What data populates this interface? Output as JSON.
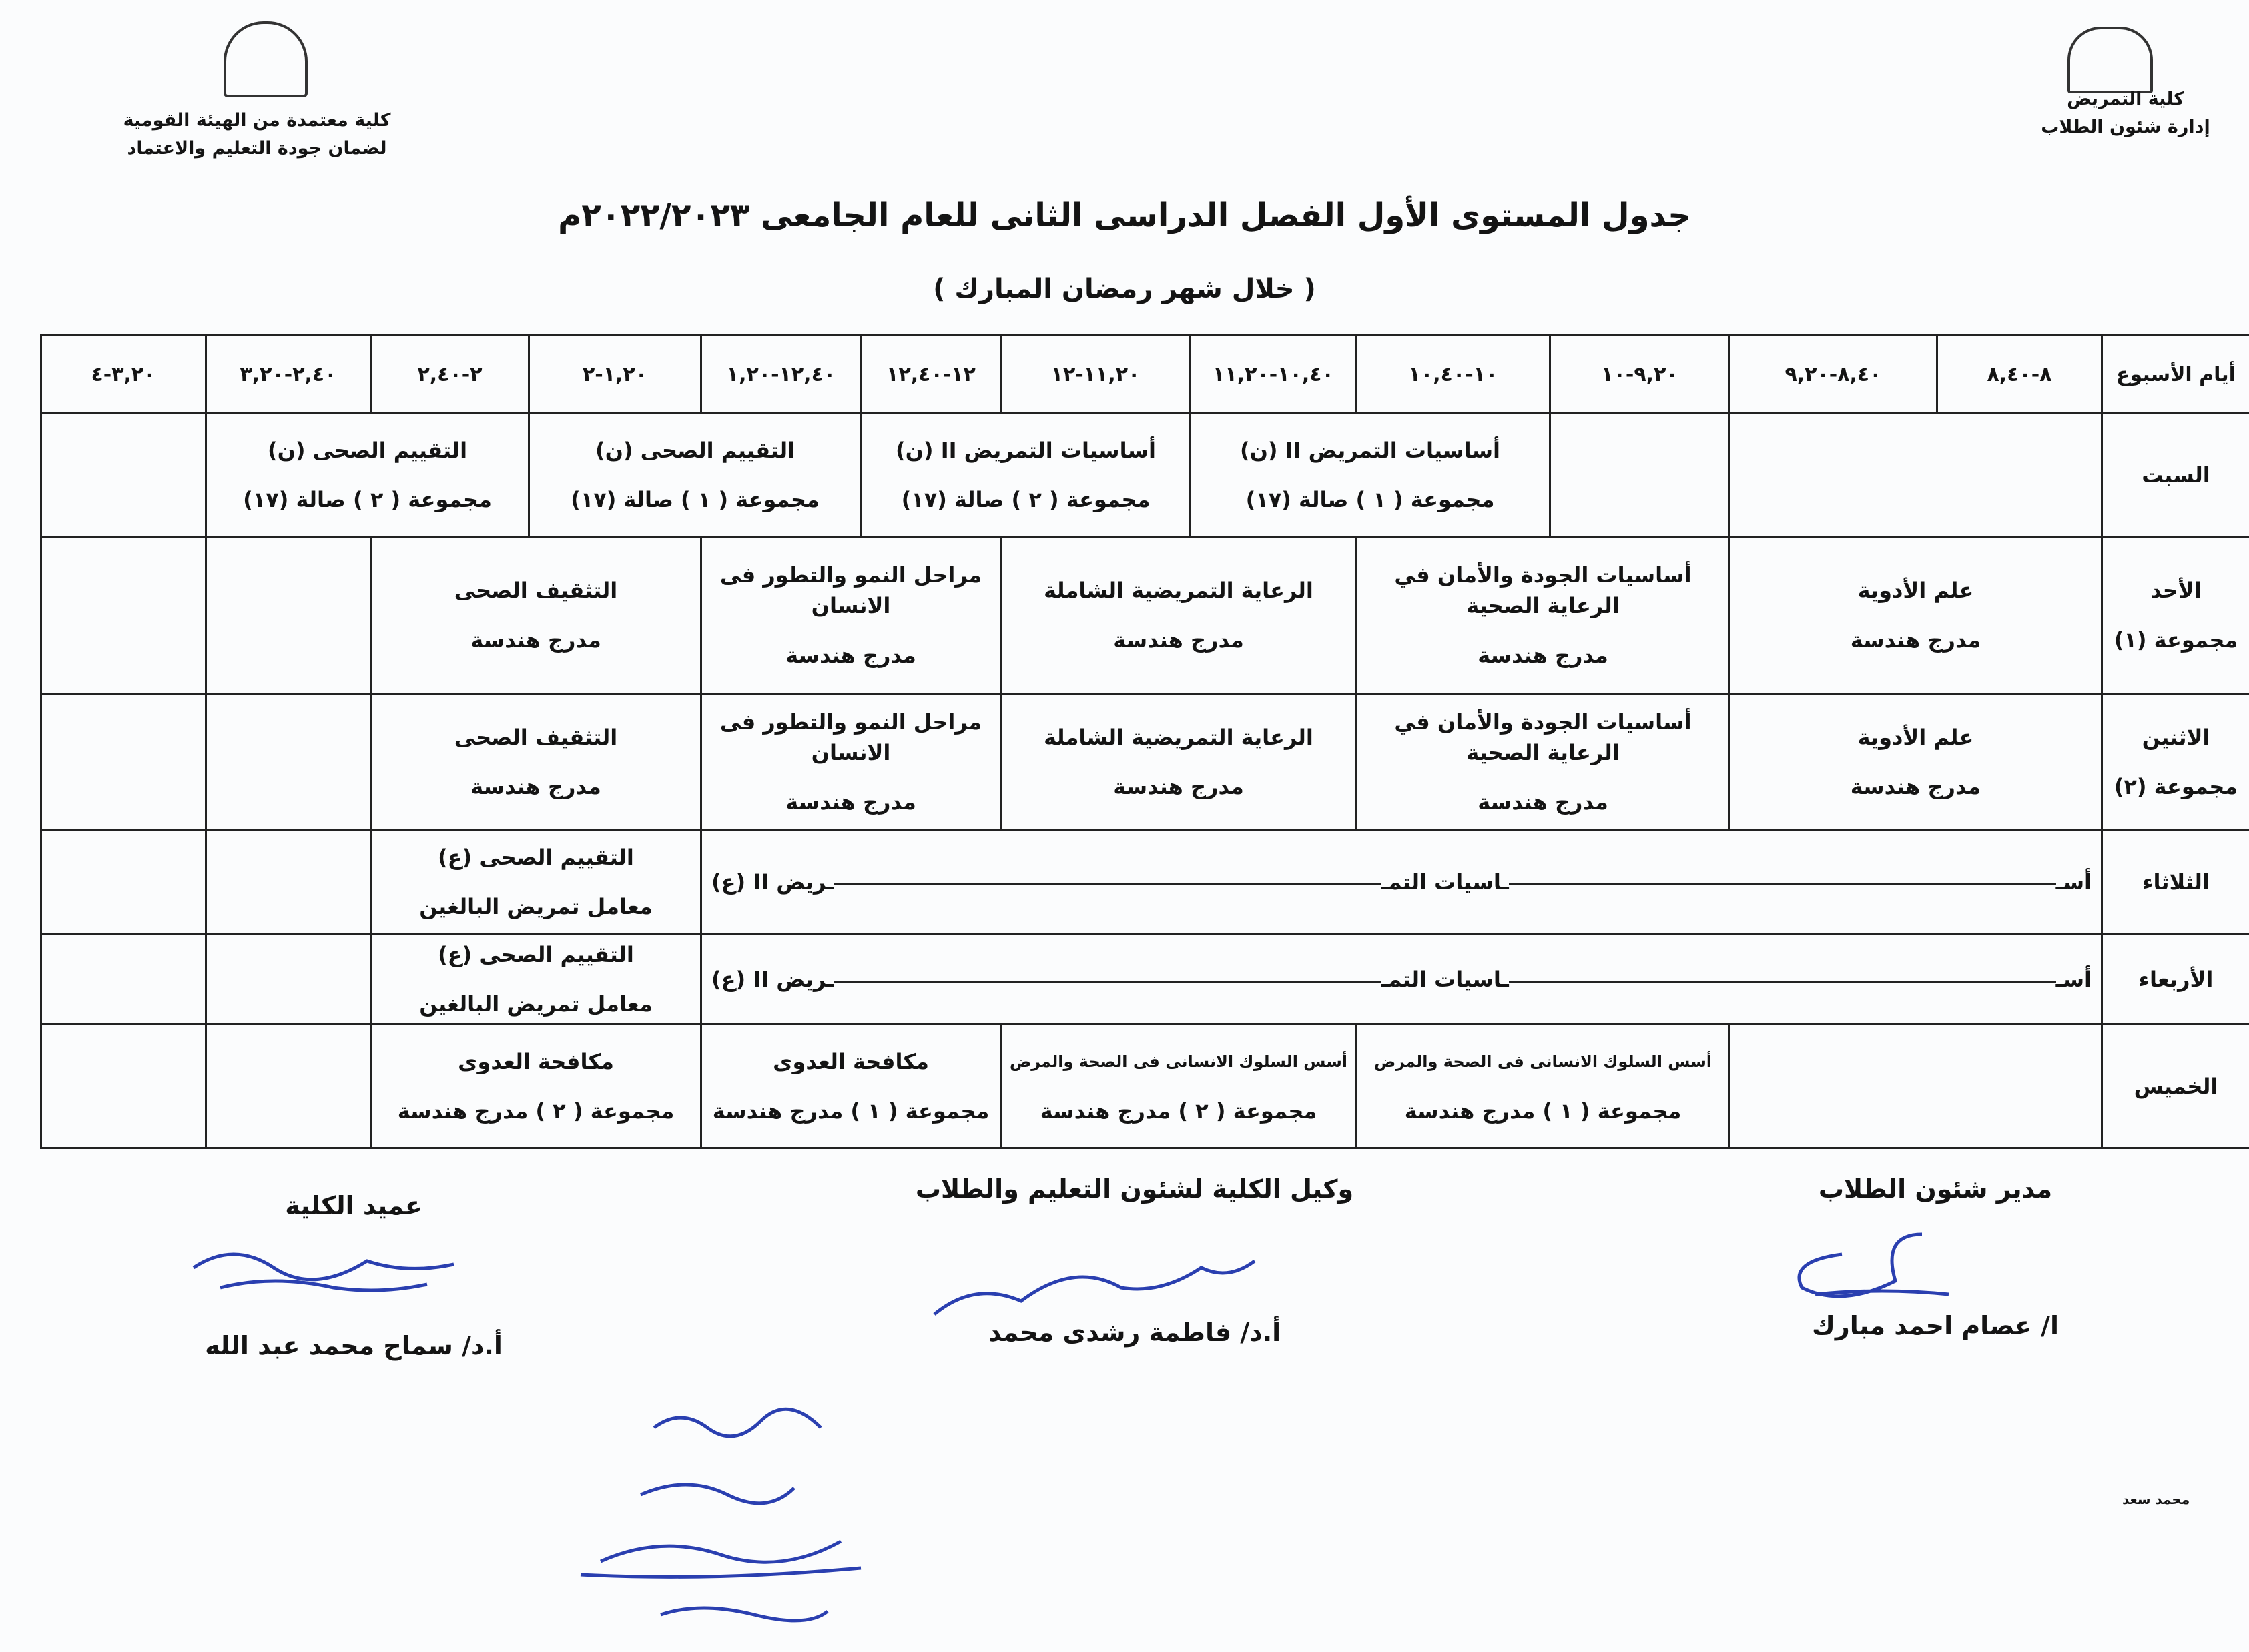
{
  "header": {
    "right_lines": [
      "كلية التمريض",
      "إدارة شئون الطلاب"
    ],
    "left_lines": [
      "كلية معتمدة من الهيئة القومية",
      "لضمان جودة التعليم والاعتماد"
    ],
    "title": "جدول المستوى الأول الفصل الدراسى الثانى للعام الجامعى ٢٠٢٢/٢٠٢٣م",
    "subtitle": "( خلال شهر رمضان المبارك )"
  },
  "schedule": {
    "corner": "أيام الأسبوع",
    "times": [
      "٨-٨,٤٠",
      "٨,٤٠-٩,٢٠",
      "٩,٢٠-١٠",
      "١٠-١٠,٤٠",
      "١٠,٤٠-١١,٢٠",
      "١١,٢٠-١٢",
      "١٢-١٢,٤٠",
      "١٢,٤٠-١,٢٠",
      "١,٢٠-٢",
      "٢-٢,٤٠",
      "٢,٤٠-٣,٢٠",
      "٣,٢٠-٤"
    ],
    "rows": [
      {
        "day": "السبت",
        "group": "",
        "cells": [
          {
            "span": 2,
            "title": "",
            "room": ""
          },
          {
            "span": 1,
            "title": "",
            "room": ""
          },
          {
            "span": 2,
            "title": "أساسيات التمريض II (ن)",
            "room": "مجموعة ( ١ ) صالة (١٧)"
          },
          {
            "span": 2,
            "title": "أساسيات التمريض II (ن)",
            "room": "مجموعة ( ٢ ) صالة (١٧)"
          },
          {
            "span": 2,
            "title": "التقييم الصحى (ن)",
            "room": "مجموعة ( ١ ) صالة (١٧)"
          },
          {
            "span": 2,
            "title": "التقييم الصحى (ن)",
            "room": "مجموعة ( ٢ ) صالة (١٧)"
          },
          {
            "span": 1,
            "title": "",
            "room": ""
          }
        ]
      },
      {
        "day": "الأحد",
        "group": "مجموعة (١)",
        "cells": [
          {
            "span": 2,
            "title": "علم الأدوية",
            "room": "مدرج هندسة"
          },
          {
            "span": 2,
            "title": "أساسيات الجودة والأمان في الرعاية الصحية",
            "room": "مدرج هندسة"
          },
          {
            "span": 2,
            "title": "الرعاية التمريضية الشاملة",
            "room": "مدرج هندسة"
          },
          {
            "span": 2,
            "title": "مراحل النمو والتطور فى الانسان",
            "room": "مدرج هندسة"
          },
          {
            "span": 2,
            "title": "التثقيف الصحى",
            "room": "مدرج هندسة"
          },
          {
            "span": 1,
            "title": "",
            "room": ""
          },
          {
            "span": 1,
            "title": "",
            "room": ""
          }
        ]
      },
      {
        "day": "الاثنين",
        "group": "مجموعة (٢)",
        "cells": [
          {
            "span": 2,
            "title": "علم الأدوية",
            "room": "مدرج هندسة"
          },
          {
            "span": 2,
            "title": "أساسيات الجودة والأمان في الرعاية الصحية",
            "room": "مدرج هندسة"
          },
          {
            "span": 2,
            "title": "الرعاية التمريضية الشاملة",
            "room": "مدرج هندسة"
          },
          {
            "span": 2,
            "title": "مراحل النمو والتطور فى الانسان",
            "room": "مدرج هندسة"
          },
          {
            "span": 2,
            "title": "التثقيف الصحى",
            "room": "مدرج هندسة"
          },
          {
            "span": 1,
            "title": "",
            "room": ""
          },
          {
            "span": 1,
            "title": "",
            "room": ""
          }
        ]
      },
      {
        "day": "الثلاثاء",
        "group": "",
        "cells": [
          {
            "span": 8,
            "parts": [
              "أسـ",
              "ـاسيات التمـ",
              "ـريض II (ع)"
            ]
          },
          {
            "span": 2,
            "title": "التقييم الصحى (ع)",
            "room": "معامل تمريض البالغين"
          },
          {
            "span": 1,
            "title": "",
            "room": ""
          },
          {
            "span": 1,
            "title": "",
            "room": ""
          }
        ]
      },
      {
        "day": "الأربعاء",
        "group": "",
        "cells": [
          {
            "span": 8,
            "parts": [
              "أسـ",
              "ـاسيات التمـ",
              "ـريض II (ع)"
            ]
          },
          {
            "span": 2,
            "title": "التقييم الصحى (ع)",
            "room": "معامل تمريض البالغين"
          },
          {
            "span": 1,
            "title": "",
            "room": ""
          },
          {
            "span": 1,
            "title": "",
            "room": ""
          }
        ]
      },
      {
        "day": "الخميس",
        "group": "",
        "cells": [
          {
            "span": 2,
            "title": "",
            "room": ""
          },
          {
            "span": 2,
            "title": "أسس السلوك الانسانى فى الصحة والمرض",
            "room": "مجموعة ( ١ ) مدرج هندسة",
            "small": true
          },
          {
            "span": 2,
            "title": "أسس السلوك الانسانى فى الصحة والمرض",
            "room": "مجموعة ( ٢ ) مدرج هندسة",
            "small": true
          },
          {
            "span": 2,
            "title": "مكافحة العدوى",
            "room": "مجموعة ( ١ ) مدرج هندسة"
          },
          {
            "span": 2,
            "title": "مكافحة العدوى",
            "room": "مجموعة ( ٢ ) مدرج هندسة"
          },
          {
            "span": 1,
            "title": "",
            "room": ""
          },
          {
            "span": 1,
            "title": "",
            "room": ""
          }
        ]
      }
    ]
  },
  "signatures": {
    "right": {
      "title": "مدير شئون الطلاب",
      "name": "ا/ عصام احمد مبارك"
    },
    "middle": {
      "title": "وكيل الكلية لشئون التعليم والطلاب",
      "name": "أ.د/ فاطمة رشدى محمد"
    },
    "left": {
      "title": "عميد الكلية",
      "name": "أ.د/ سماح محمد عبد الله"
    }
  },
  "footer_note": "محمد سعد",
  "ink_color": "#2a3fb0"
}
